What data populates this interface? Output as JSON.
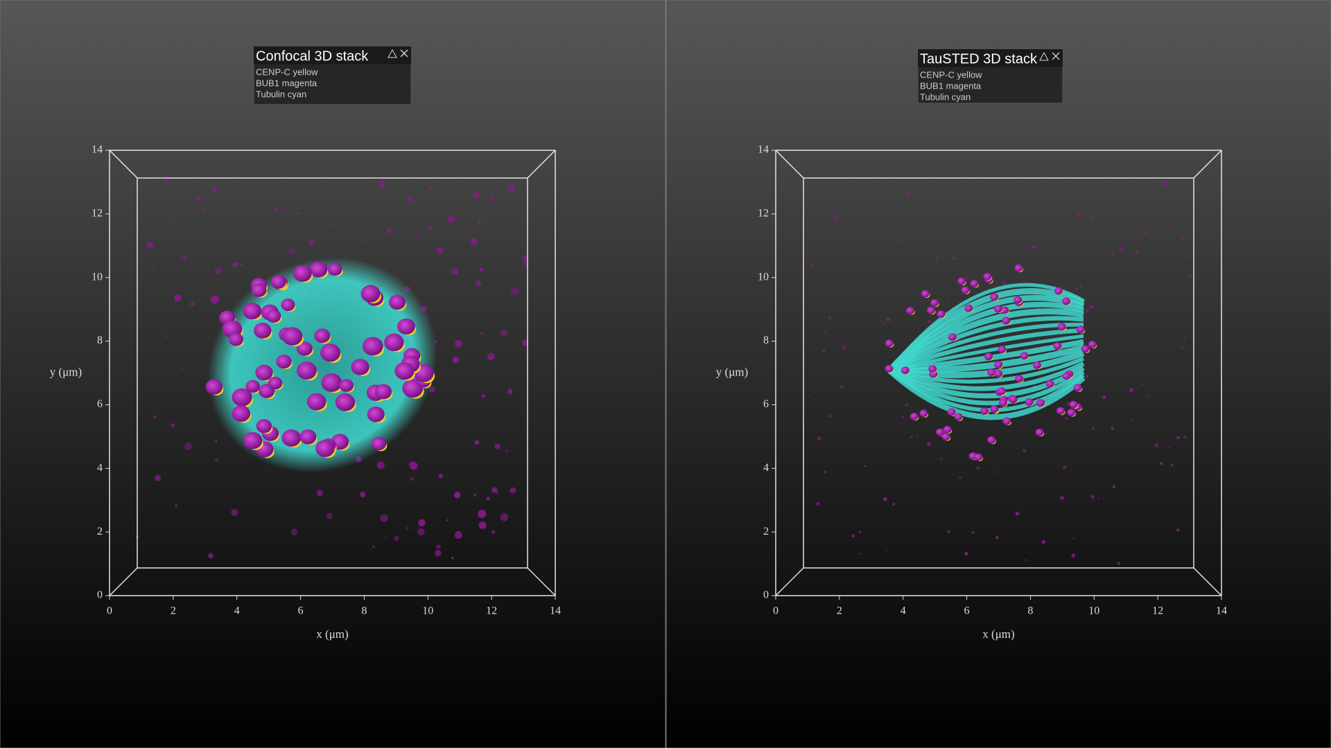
{
  "panels": [
    {
      "title": "Confocal 3D stack",
      "legend": [
        "CENP-C yellow",
        "BUB1 magenta",
        "Tubulin cyan"
      ],
      "xlabel": "x (μm)",
      "ylabel": "y (μm)",
      "xticks": [
        0,
        2,
        4,
        6,
        8,
        10,
        12,
        14
      ],
      "yticks": [
        0,
        2,
        4,
        6,
        8,
        10,
        12,
        14
      ]
    },
    {
      "title": "TauSTED 3D stack",
      "legend": [
        "CENP-C yellow",
        "BUB1 magenta",
        "Tubulin cyan"
      ],
      "xlabel": "x (μm)",
      "ylabel": "y (μm)",
      "xticks": [
        0,
        2,
        4,
        6,
        8,
        10,
        12,
        14
      ],
      "yticks": [
        0,
        2,
        4,
        6,
        8,
        10,
        12,
        14
      ]
    }
  ]
}
